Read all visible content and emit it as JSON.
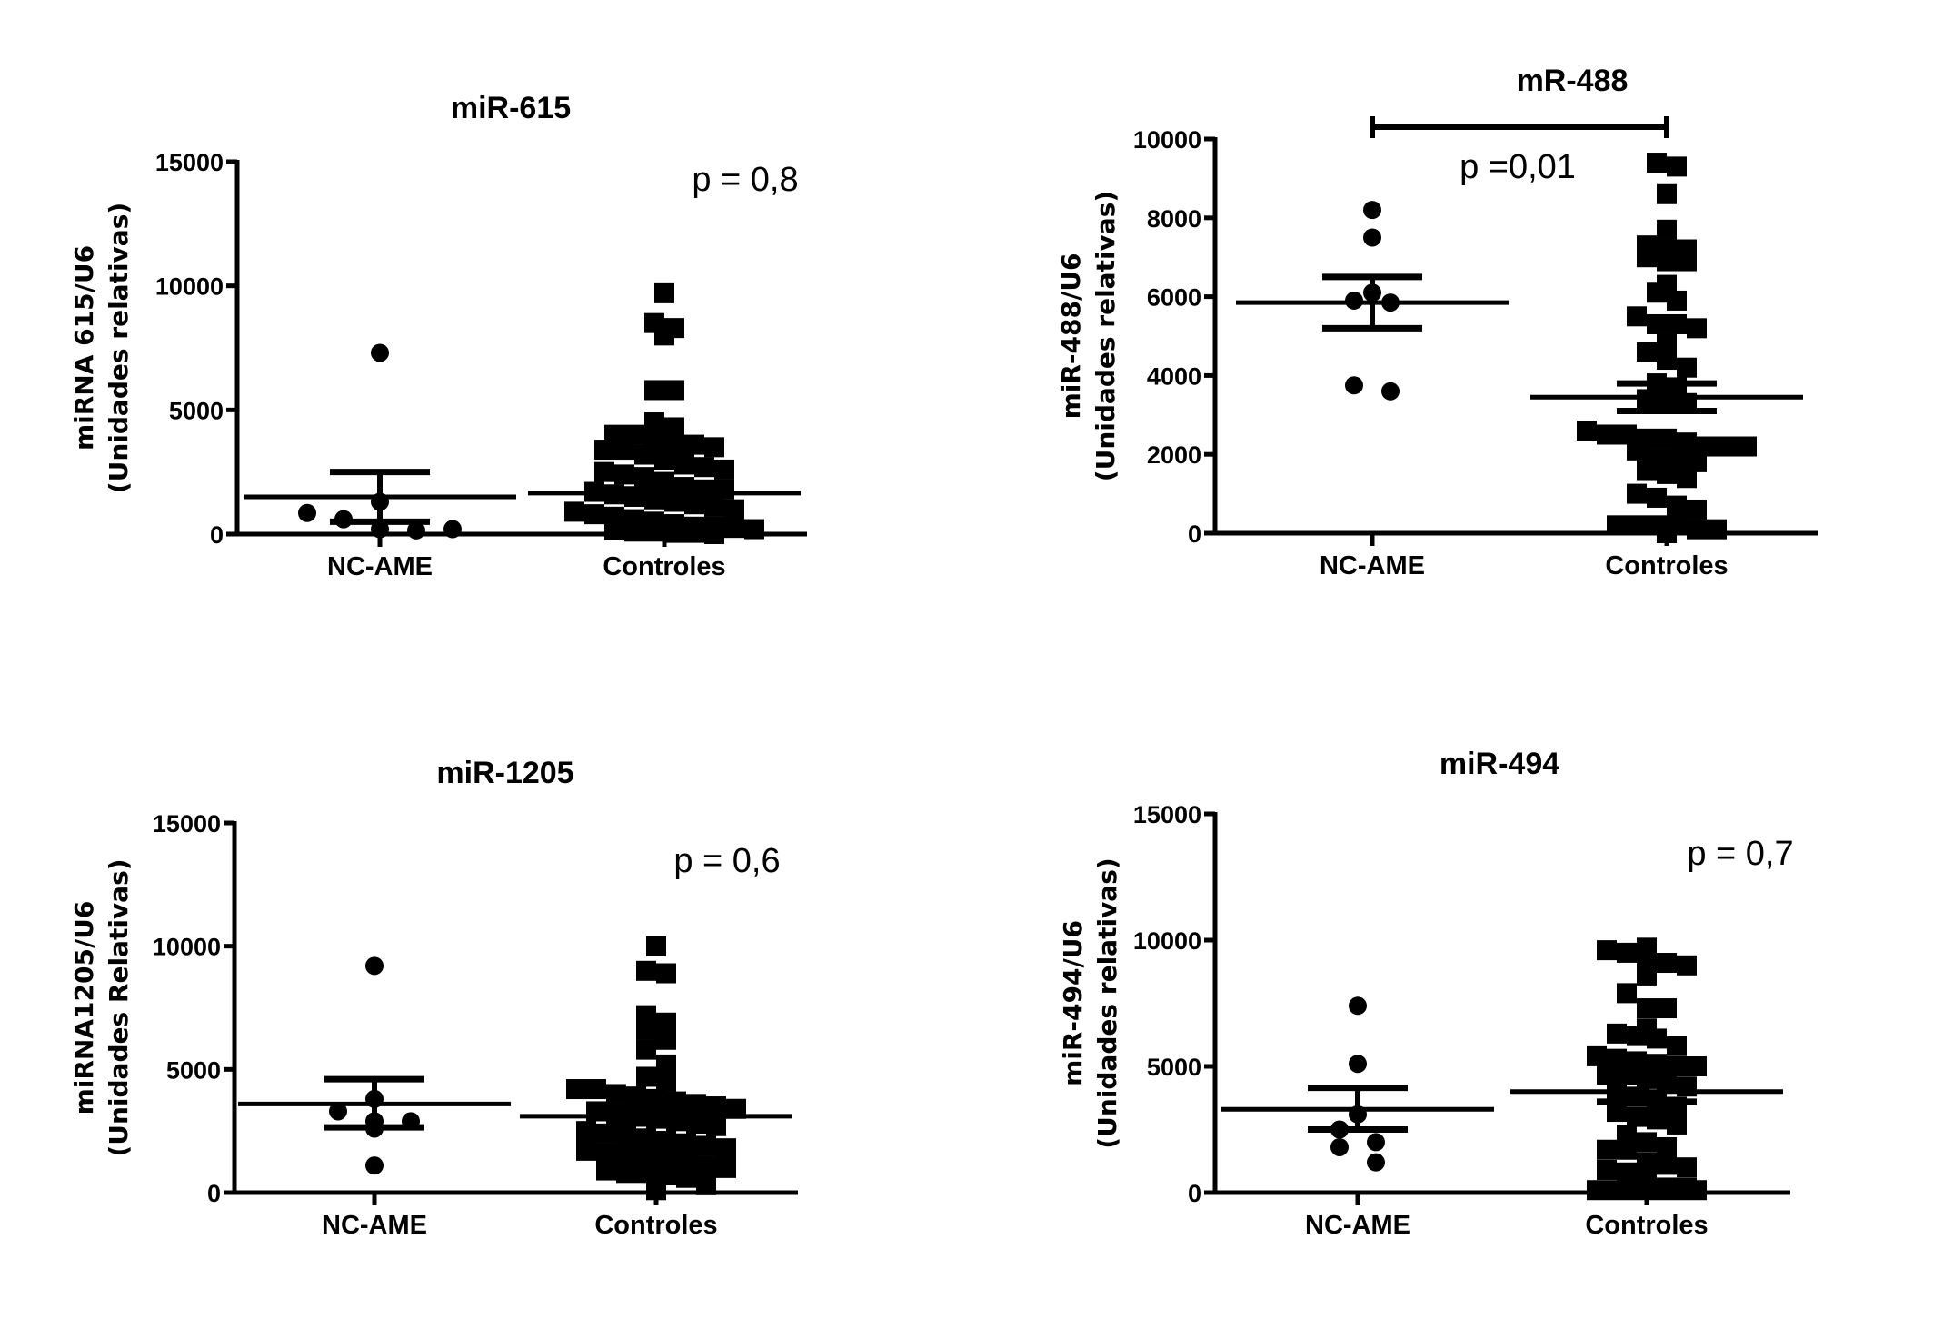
{
  "colors": {
    "ink": "#000000",
    "background": "#ffffff"
  },
  "chart_data": [
    {
      "type": "scatter",
      "title": "miR-615",
      "ylabel": [
        "miRNA 615/U6",
        "(Unidades relativas)"
      ],
      "ylim": [
        0,
        15000
      ],
      "yticks": [
        0,
        5000,
        10000,
        15000
      ],
      "ytick_labels": [
        "0",
        "5000",
        "10000",
        "15000"
      ],
      "categories": [
        "NC-AME",
        "Controles"
      ],
      "annotation": "p = 0,8",
      "significance_bar": false,
      "series": [
        {
          "name": "NC-AME",
          "marker": "circle",
          "mean": 1500,
          "sem": [
            500,
            2500
          ],
          "values": [
            7300,
            850,
            1300,
            600,
            200,
            150,
            200
          ]
        },
        {
          "name": "Controles",
          "marker": "square",
          "mean": 1650,
          "sem": [
            1450,
            1800
          ],
          "values": [
            9700,
            8500,
            8300,
            8000,
            5800,
            5800,
            4500,
            4300,
            4000,
            4000,
            3800,
            3600,
            3600,
            3500,
            3400,
            3400,
            3200,
            3000,
            2800,
            2700,
            2600,
            2500,
            2400,
            2300,
            2100,
            1900,
            1800,
            1800,
            1700,
            1600,
            1500,
            1400,
            1300,
            1200,
            1100,
            1000,
            900,
            800,
            700,
            600,
            500,
            400,
            300,
            300,
            250,
            200,
            150,
            100,
            100,
            50,
            50,
            0
          ]
        }
      ]
    },
    {
      "type": "scatter",
      "title": "mR-488",
      "ylabel": [
        "miR-488/U6",
        "(Unidades relativas)"
      ],
      "ylim": [
        0,
        10000
      ],
      "yticks": [
        0,
        2000,
        4000,
        6000,
        8000,
        10000
      ],
      "ytick_labels": [
        "0",
        "2000",
        "4000",
        "6000",
        "8000",
        "10000"
      ],
      "categories": [
        "NC-AME",
        "Controles"
      ],
      "annotation": "p =0,01",
      "significance_bar": true,
      "series": [
        {
          "name": "NC-AME",
          "marker": "circle",
          "mean": 5850,
          "sem": [
            5200,
            6500
          ],
          "values": [
            8200,
            7500,
            6100,
            5900,
            5850,
            3750,
            3600
          ]
        },
        {
          "name": "Controles",
          "marker": "square",
          "mean": 3450,
          "sem": [
            3100,
            3800
          ],
          "values": [
            9400,
            9300,
            8600,
            7700,
            7300,
            7200,
            7200,
            7000,
            6900,
            6900,
            6300,
            6100,
            5900,
            5500,
            5300,
            5300,
            5200,
            4800,
            4600,
            4400,
            4200,
            3800,
            3700,
            3400,
            3300,
            3300,
            2600,
            2500,
            2500,
            2400,
            2400,
            2300,
            2200,
            2200,
            2200,
            2100,
            1900,
            1900,
            1800,
            1600,
            1500,
            1400,
            1000,
            900,
            700,
            600,
            200,
            200,
            200,
            200,
            100,
            100,
            0
          ]
        }
      ]
    },
    {
      "type": "scatter",
      "title": "miR-1205",
      "ylabel": [
        "miRNA1205/U6",
        "(Unidades Relativas)"
      ],
      "ylim": [
        0,
        15000
      ],
      "yticks": [
        0,
        5000,
        10000,
        15000
      ],
      "ytick_labels": [
        "0",
        "5000",
        "10000",
        "15000"
      ],
      "categories": [
        "NC-AME",
        "Controles"
      ],
      "annotation": "p = 0,6",
      "significance_bar": false,
      "series": [
        {
          "name": "NC-AME",
          "marker": "circle",
          "mean": 3600,
          "sem": [
            2650,
            4600
          ],
          "values": [
            9200,
            3800,
            3300,
            2900,
            2900,
            2600,
            1100
          ]
        },
        {
          "name": "Controles",
          "marker": "square",
          "mean": 3100,
          "sem": [
            2800,
            3400
          ],
          "values": [
            10000,
            9000,
            8900,
            7200,
            6900,
            6600,
            6200,
            5800,
            5200,
            4700,
            4500,
            4200,
            4200,
            4000,
            3900,
            3800,
            3700,
            3600,
            3500,
            3400,
            3300,
            3200,
            3100,
            3000,
            2900,
            2800,
            2700,
            2500,
            2400,
            2300,
            2200,
            2100,
            2000,
            1900,
            1800,
            1700,
            1600,
            1500,
            1400,
            1300,
            1200,
            1100,
            1000,
            900,
            800,
            800,
            700,
            600,
            300,
            100
          ]
        }
      ]
    },
    {
      "type": "scatter",
      "title": "miR-494",
      "ylabel": [
        "miR-494/U6",
        "(Unidades relativas)"
      ],
      "ylim": [
        0,
        15000
      ],
      "yticks": [
        0,
        5000,
        10000,
        15000
      ],
      "ytick_labels": [
        "0",
        "5000",
        "10000",
        "15000"
      ],
      "categories": [
        "NC-AME",
        "Controles"
      ],
      "annotation": "p = 0,7",
      "significance_bar": false,
      "series": [
        {
          "name": "NC-AME",
          "marker": "circle",
          "mean": 3300,
          "sem": [
            2500,
            4150
          ],
          "values": [
            7400,
            5100,
            3100,
            2500,
            2000,
            1800,
            1200
          ]
        },
        {
          "name": "Controles",
          "marker": "square",
          "mean": 4000,
          "sem": [
            3600,
            4400
          ],
          "values": [
            9700,
            9600,
            9500,
            9300,
            9100,
            9000,
            8600,
            7900,
            7300,
            7300,
            6500,
            6300,
            6200,
            6100,
            5800,
            5400,
            5300,
            5200,
            5100,
            5000,
            5000,
            4800,
            4700,
            4500,
            4400,
            4200,
            4100,
            3800,
            3600,
            3400,
            3200,
            3000,
            2900,
            2700,
            2300,
            2000,
            1800,
            1700,
            1700,
            1200,
            1100,
            1000,
            900,
            800,
            700,
            200,
            200,
            100,
            100,
            100,
            100,
            100,
            100
          ]
        }
      ]
    }
  ]
}
